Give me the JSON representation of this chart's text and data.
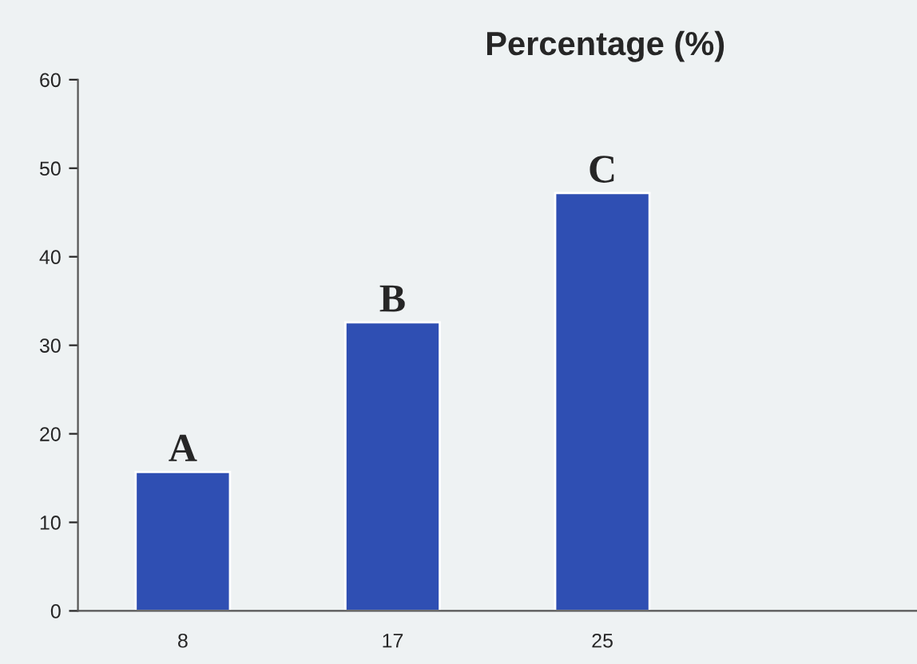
{
  "chart_data": {
    "type": "bar",
    "title": "Percentage (%)",
    "categories": [
      "8",
      "17",
      "25",
      null
    ],
    "values": [
      15.7,
      32.6,
      47.2,
      null
    ],
    "color": "#2f4fb3",
    "ylim": [
      0,
      60
    ],
    "yticks": [
      0,
      10,
      20,
      30,
      40,
      50,
      60
    ],
    "grid": false,
    "annotations": [
      {
        "text": "A",
        "x": "8",
        "y": 15.7
      },
      {
        "text": "B",
        "x": "17",
        "y": 32.6
      },
      {
        "text": "C",
        "x": "25",
        "y": 47.2
      }
    ]
  }
}
